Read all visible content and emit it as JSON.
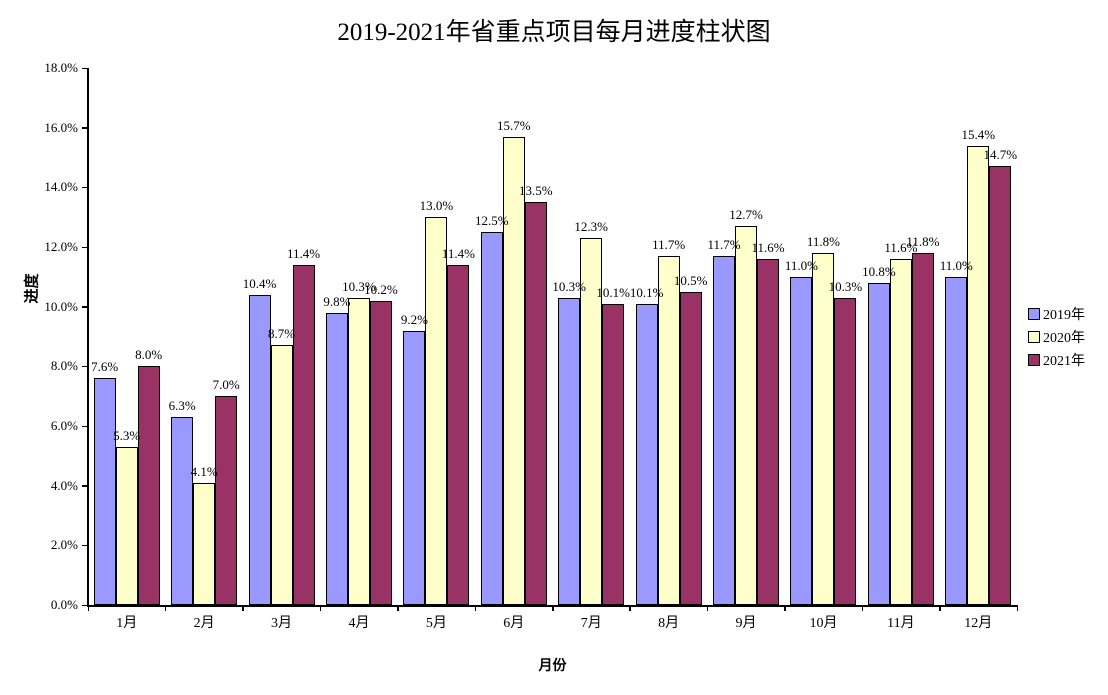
{
  "chart_data": {
    "type": "bar",
    "title": "2019-2021年省重点项目每月进度柱状图",
    "xlabel": "月份",
    "ylabel": "进度",
    "categories": [
      "1月",
      "2月",
      "3月",
      "4月",
      "5月",
      "6月",
      "7月",
      "8月",
      "9月",
      "10月",
      "11月",
      "12月"
    ],
    "series": [
      {
        "name": "2019年",
        "color": "#9999FF",
        "values": [
          7.6,
          6.3,
          10.4,
          9.8,
          9.2,
          12.5,
          10.3,
          10.1,
          11.7,
          11.0,
          10.8,
          11.0
        ]
      },
      {
        "name": "2020年",
        "color": "#FFFFCC",
        "values": [
          5.3,
          4.1,
          8.7,
          10.3,
          13.0,
          15.7,
          12.3,
          11.7,
          12.7,
          11.8,
          11.6,
          15.4
        ]
      },
      {
        "name": "2021年",
        "color": "#993366",
        "values": [
          8.0,
          7.0,
          11.4,
          10.2,
          11.4,
          13.5,
          10.1,
          10.5,
          11.6,
          10.3,
          11.8,
          14.7
        ]
      }
    ],
    "ylim": [
      0,
      18
    ],
    "y_tick_step": 2,
    "y_tick_labels": [
      "0.0%",
      "2.0%",
      "4.0%",
      "6.0%",
      "8.0%",
      "10.0%",
      "12.0%",
      "14.0%",
      "16.0%",
      "18.0%"
    ],
    "data_labels": true,
    "data_label_suffix": "%",
    "grid": false,
    "legend_position": "right",
    "bar_border_color": "#000000",
    "background": "#FFFFFF"
  }
}
